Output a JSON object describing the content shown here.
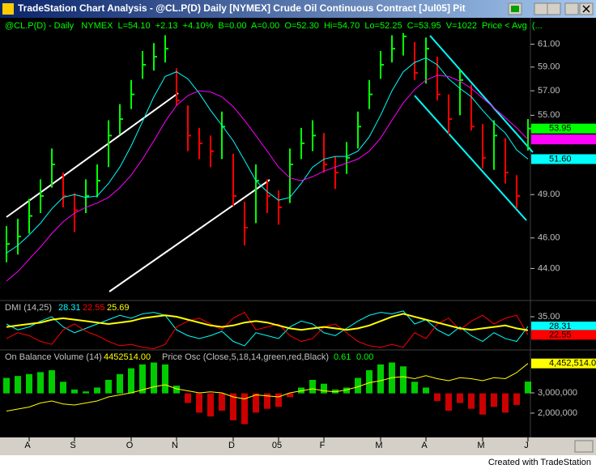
{
  "window": {
    "title": "TradeStation Chart Analysis - @CL.P(D)  Daily  [NYMEX] Crude Oil Continuous Contract [Jul05] Pit"
  },
  "footer": "Created with TradeStation",
  "chart_data": [
    {
      "type": "ohlc",
      "header": "@CL.P(D) - Daily   NYMEX  L=54.10  +2.13  +4.10%  B=0.00  A=0.00  O=52.30  Hi=54.70  Lo=52.25  C=53.95  V=1022  Price < Avg  (...",
      "categories": [
        null,
        null,
        "A",
        null,
        null,
        null,
        "S",
        null,
        null,
        null,
        null,
        "O",
        null,
        null,
        null,
        "N",
        null,
        null,
        null,
        null,
        "D",
        null,
        null,
        null,
        "05",
        null,
        null,
        null,
        "F",
        null,
        null,
        null,
        null,
        "M",
        null,
        null,
        null,
        "A",
        null,
        null,
        null,
        null,
        "M",
        null,
        null,
        null,
        "J"
      ],
      "high": [
        46.8,
        47.3,
        48.7,
        50.1,
        52.4,
        50.6,
        49.1,
        50.1,
        51.2,
        54.6,
        55.9,
        57.9,
        60.4,
        61.1,
        61.8,
        58.9,
        55.8,
        54.0,
        53.4,
        55.3,
        52.0,
        48.5,
        51.2,
        50.1,
        49.3,
        52.4,
        54.0,
        54.6,
        53.6,
        51.8,
        52.9,
        55.3,
        57.9,
        60.4,
        61.8,
        62.0,
        61.2,
        61.6,
        59.9,
        56.7,
        58.8,
        57.5,
        54.3,
        54.6,
        53.2,
        50.4,
        54.7
      ],
      "low": [
        44.4,
        44.9,
        46.3,
        47.7,
        49.5,
        48.1,
        46.4,
        47.7,
        48.8,
        51.0,
        53.5,
        55.5,
        58.0,
        58.7,
        59.4,
        55.8,
        52.2,
        51.6,
        51.0,
        51.6,
        48.2,
        45.5,
        47.0,
        47.7,
        46.9,
        48.4,
        51.6,
        52.2,
        50.6,
        49.4,
        50.5,
        52.4,
        55.5,
        58.0,
        59.4,
        60.0,
        57.9,
        57.6,
        56.2,
        53.5,
        55.0,
        53.8,
        50.9,
        50.8,
        49.8,
        48.0,
        52.25
      ],
      "close": [
        45.6,
        46.1,
        47.5,
        48.9,
        51.2,
        48.9,
        47.9,
        48.9,
        50.0,
        53.4,
        54.7,
        56.7,
        59.2,
        59.9,
        60.6,
        56.2,
        53.4,
        52.8,
        52.2,
        54.1,
        48.9,
        46.7,
        50.0,
        48.9,
        48.1,
        51.2,
        52.8,
        53.4,
        51.2,
        50.6,
        51.7,
        54.1,
        56.7,
        59.2,
        60.6,
        61.7,
        58.5,
        60.6,
        56.7,
        54.7,
        57.9,
        54.1,
        51.7,
        53.4,
        50.6,
        48.9,
        53.95
      ],
      "up_color": "#00ff00",
      "down_color": "#ff0000",
      "averages": [
        {
          "color": "#00ffff",
          "values": [
            45.0,
            45.5,
            46.2,
            47.0,
            48.0,
            48.8,
            49.0,
            48.8,
            48.9,
            49.8,
            51.0,
            52.6,
            54.5,
            56.5,
            58.2,
            58.6,
            58.0,
            56.8,
            55.4,
            54.2,
            53.0,
            51.5,
            50.0,
            49.2,
            48.6,
            48.8,
            49.8,
            51.0,
            51.6,
            51.8,
            51.8,
            52.2,
            53.3,
            55.0,
            57.0,
            58.6,
            59.4,
            59.8,
            59.2,
            58.0,
            57.2,
            56.5,
            55.4,
            54.4,
            53.6,
            52.3,
            51.6
          ]
        },
        {
          "color": "#ff00ff",
          "values": [
            43.2,
            43.8,
            44.6,
            45.4,
            46.3,
            47.1,
            47.7,
            48.1,
            48.4,
            48.8,
            49.5,
            50.4,
            51.6,
            53.0,
            54.5,
            55.8,
            56.6,
            57.0,
            56.9,
            56.5,
            55.7,
            54.6,
            53.4,
            52.2,
            51.0,
            50.2,
            50.0,
            50.3,
            50.7,
            51.0,
            51.3,
            51.6,
            52.2,
            53.2,
            54.6,
            56.0,
            57.1,
            57.9,
            58.3,
            58.2,
            57.8,
            57.2,
            56.4,
            55.6,
            54.8,
            54.0,
            53.1
          ]
        }
      ],
      "markers": [
        {
          "value": 53.95,
          "label": "53.95",
          "color": "#00ff00"
        },
        {
          "value": 53.1,
          "color": "#ff00ff"
        },
        {
          "value": 51.6,
          "label": "51.60",
          "color": "#00ffff"
        }
      ],
      "log": true,
      "ylim": [
        41.5,
        62.5
      ],
      "yticks": [
        {
          "value": 61,
          "label": "61.00"
        },
        {
          "value": 59,
          "label": "59.00"
        },
        {
          "value": 57,
          "label": "57.00"
        },
        {
          "value": 55,
          "label": "55.00"
        },
        {
          "value": 49,
          "label": "49.00"
        },
        {
          "value": 46,
          "label": "46.00"
        },
        {
          "value": 44,
          "label": "44.00"
        }
      ]
    },
    {
      "type": "line",
      "header": "DMI (14,25)",
      "series": [
        {
          "color": "#00ffff",
          "last_label": "28.31",
          "values": [
            30,
            26,
            28,
            32,
            35,
            28,
            24,
            27,
            30,
            33,
            36,
            34,
            37,
            38,
            36,
            26,
            22,
            20,
            22,
            25,
            18,
            15,
            24,
            22,
            20,
            28,
            32,
            30,
            24,
            22,
            27,
            32,
            36,
            38,
            37,
            39,
            30,
            33,
            26,
            22,
            28,
            22,
            18,
            24,
            20,
            18,
            28.31
          ]
        },
        {
          "color": "#ff0000",
          "last_label": "22.55",
          "values": [
            20,
            24,
            22,
            18,
            16,
            26,
            30,
            25,
            22,
            18,
            15,
            16,
            14,
            13,
            16,
            28,
            32,
            34,
            30,
            26,
            34,
            38,
            26,
            28,
            30,
            22,
            18,
            20,
            28,
            30,
            24,
            18,
            15,
            14,
            16,
            14,
            24,
            20,
            30,
            34,
            26,
            32,
            36,
            30,
            34,
            36,
            22.55
          ]
        },
        {
          "color": "#ffff00",
          "last_label": "25.69",
          "values": [
            28,
            29,
            30,
            31,
            33,
            34,
            33,
            32,
            31,
            30,
            31,
            32,
            34,
            35,
            36,
            35,
            33,
            31,
            29,
            28,
            29,
            31,
            32,
            31,
            29,
            27,
            26,
            27,
            28,
            27,
            26,
            27,
            29,
            32,
            35,
            37,
            35,
            33,
            31,
            29,
            27,
            26,
            27,
            28,
            29,
            27,
            25.69
          ]
        }
      ],
      "ylim": [
        14,
        44
      ],
      "yticks": [
        {
          "value": 35,
          "label": "35.00"
        }
      ]
    },
    {
      "type": "obv",
      "header": "On Balance Volume (14)",
      "obv_label": "4452514.00",
      "osc_header": "Price Osc  (Close,5,18,14,green,red,Black)",
      "osc_labels": [
        "0.61",
        "0.00"
      ],
      "series": [
        {
          "color": "#ffff00",
          "last_label": "4,452,514.0",
          "values": [
            2100000,
            2200000,
            2300000,
            2500000,
            2600000,
            2450000,
            2400000,
            2500000,
            2600000,
            2800000,
            2900000,
            3000000,
            3150000,
            3300000,
            3400000,
            3200000,
            3100000,
            3000000,
            3050000,
            3000000,
            2800000,
            2700000,
            2900000,
            2850000,
            2800000,
            3000000,
            3100000,
            3200000,
            3100000,
            3050000,
            3150000,
            3300000,
            3500000,
            3600000,
            3750000,
            3800000,
            3700000,
            3850000,
            3700000,
            3600000,
            3750000,
            3700000,
            3600000,
            3750000,
            3700000,
            4000000,
            4452514
          ]
        }
      ],
      "histogram": {
        "axis": "y2",
        "up_color": "#00ff00",
        "down_color": "#ff0000",
        "values": [
          0.8,
          0.9,
          1.0,
          1.1,
          1.2,
          0.6,
          0.2,
          0.1,
          0.3,
          0.7,
          1.0,
          1.3,
          1.5,
          1.6,
          1.5,
          0.4,
          -0.5,
          -1.0,
          -1.2,
          -0.9,
          -1.4,
          -1.6,
          -1.0,
          -0.8,
          -0.7,
          -0.2,
          0.3,
          0.7,
          0.5,
          0.2,
          0.3,
          0.8,
          1.2,
          1.5,
          1.6,
          1.4,
          0.6,
          0.3,
          -0.4,
          -0.9,
          -0.5,
          -0.8,
          -1.1,
          -0.7,
          -1.0,
          -0.6,
          0.61
        ]
      },
      "ylim": [
        880000,
        4880000
      ],
      "yticks": [
        {
          "value": 3000000,
          "label": "3,000,000"
        },
        {
          "value": 2000000,
          "label": "2,000,000"
        }
      ],
      "y2lim": [
        -2.2,
        2.0
      ]
    }
  ]
}
